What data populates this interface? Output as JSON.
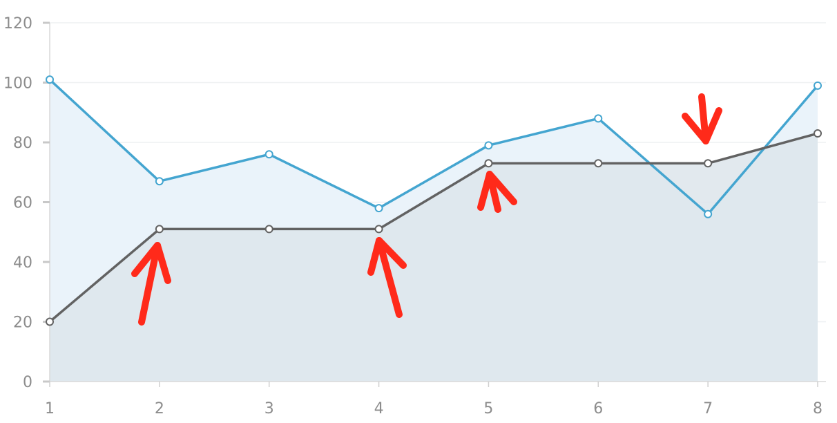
{
  "chart_data": {
    "type": "area",
    "x": [
      1,
      2,
      3,
      4,
      5,
      6,
      7,
      8
    ],
    "xlim": [
      1,
      8
    ],
    "ylim": [
      0,
      120
    ],
    "yticks": [
      0,
      20,
      40,
      60,
      80,
      100,
      120
    ],
    "xticks": [
      1,
      2,
      3,
      4,
      5,
      6,
      7,
      8
    ],
    "grid": true,
    "series": [
      {
        "values": [
          101,
          67,
          76,
          58,
          79,
          88,
          56,
          99
        ],
        "line_color": "#44a5d0",
        "fill_color": "#eaf3fa"
      },
      {
        "values": [
          20,
          51,
          51,
          51,
          73,
          73,
          73,
          83
        ],
        "line_color": "#626262",
        "fill_color": "#dde5eb"
      }
    ],
    "annotations": [
      {
        "type": "arrow",
        "color": "#ff2a1a",
        "x": 2,
        "y": 51
      },
      {
        "type": "arrow",
        "color": "#ff2a1a",
        "x": 4,
        "y": 51
      },
      {
        "type": "arrow",
        "color": "#ff2a1a",
        "x": 5,
        "y": 73
      },
      {
        "type": "arrow",
        "color": "#ff2a1a",
        "x": 7,
        "y": 73
      }
    ]
  }
}
